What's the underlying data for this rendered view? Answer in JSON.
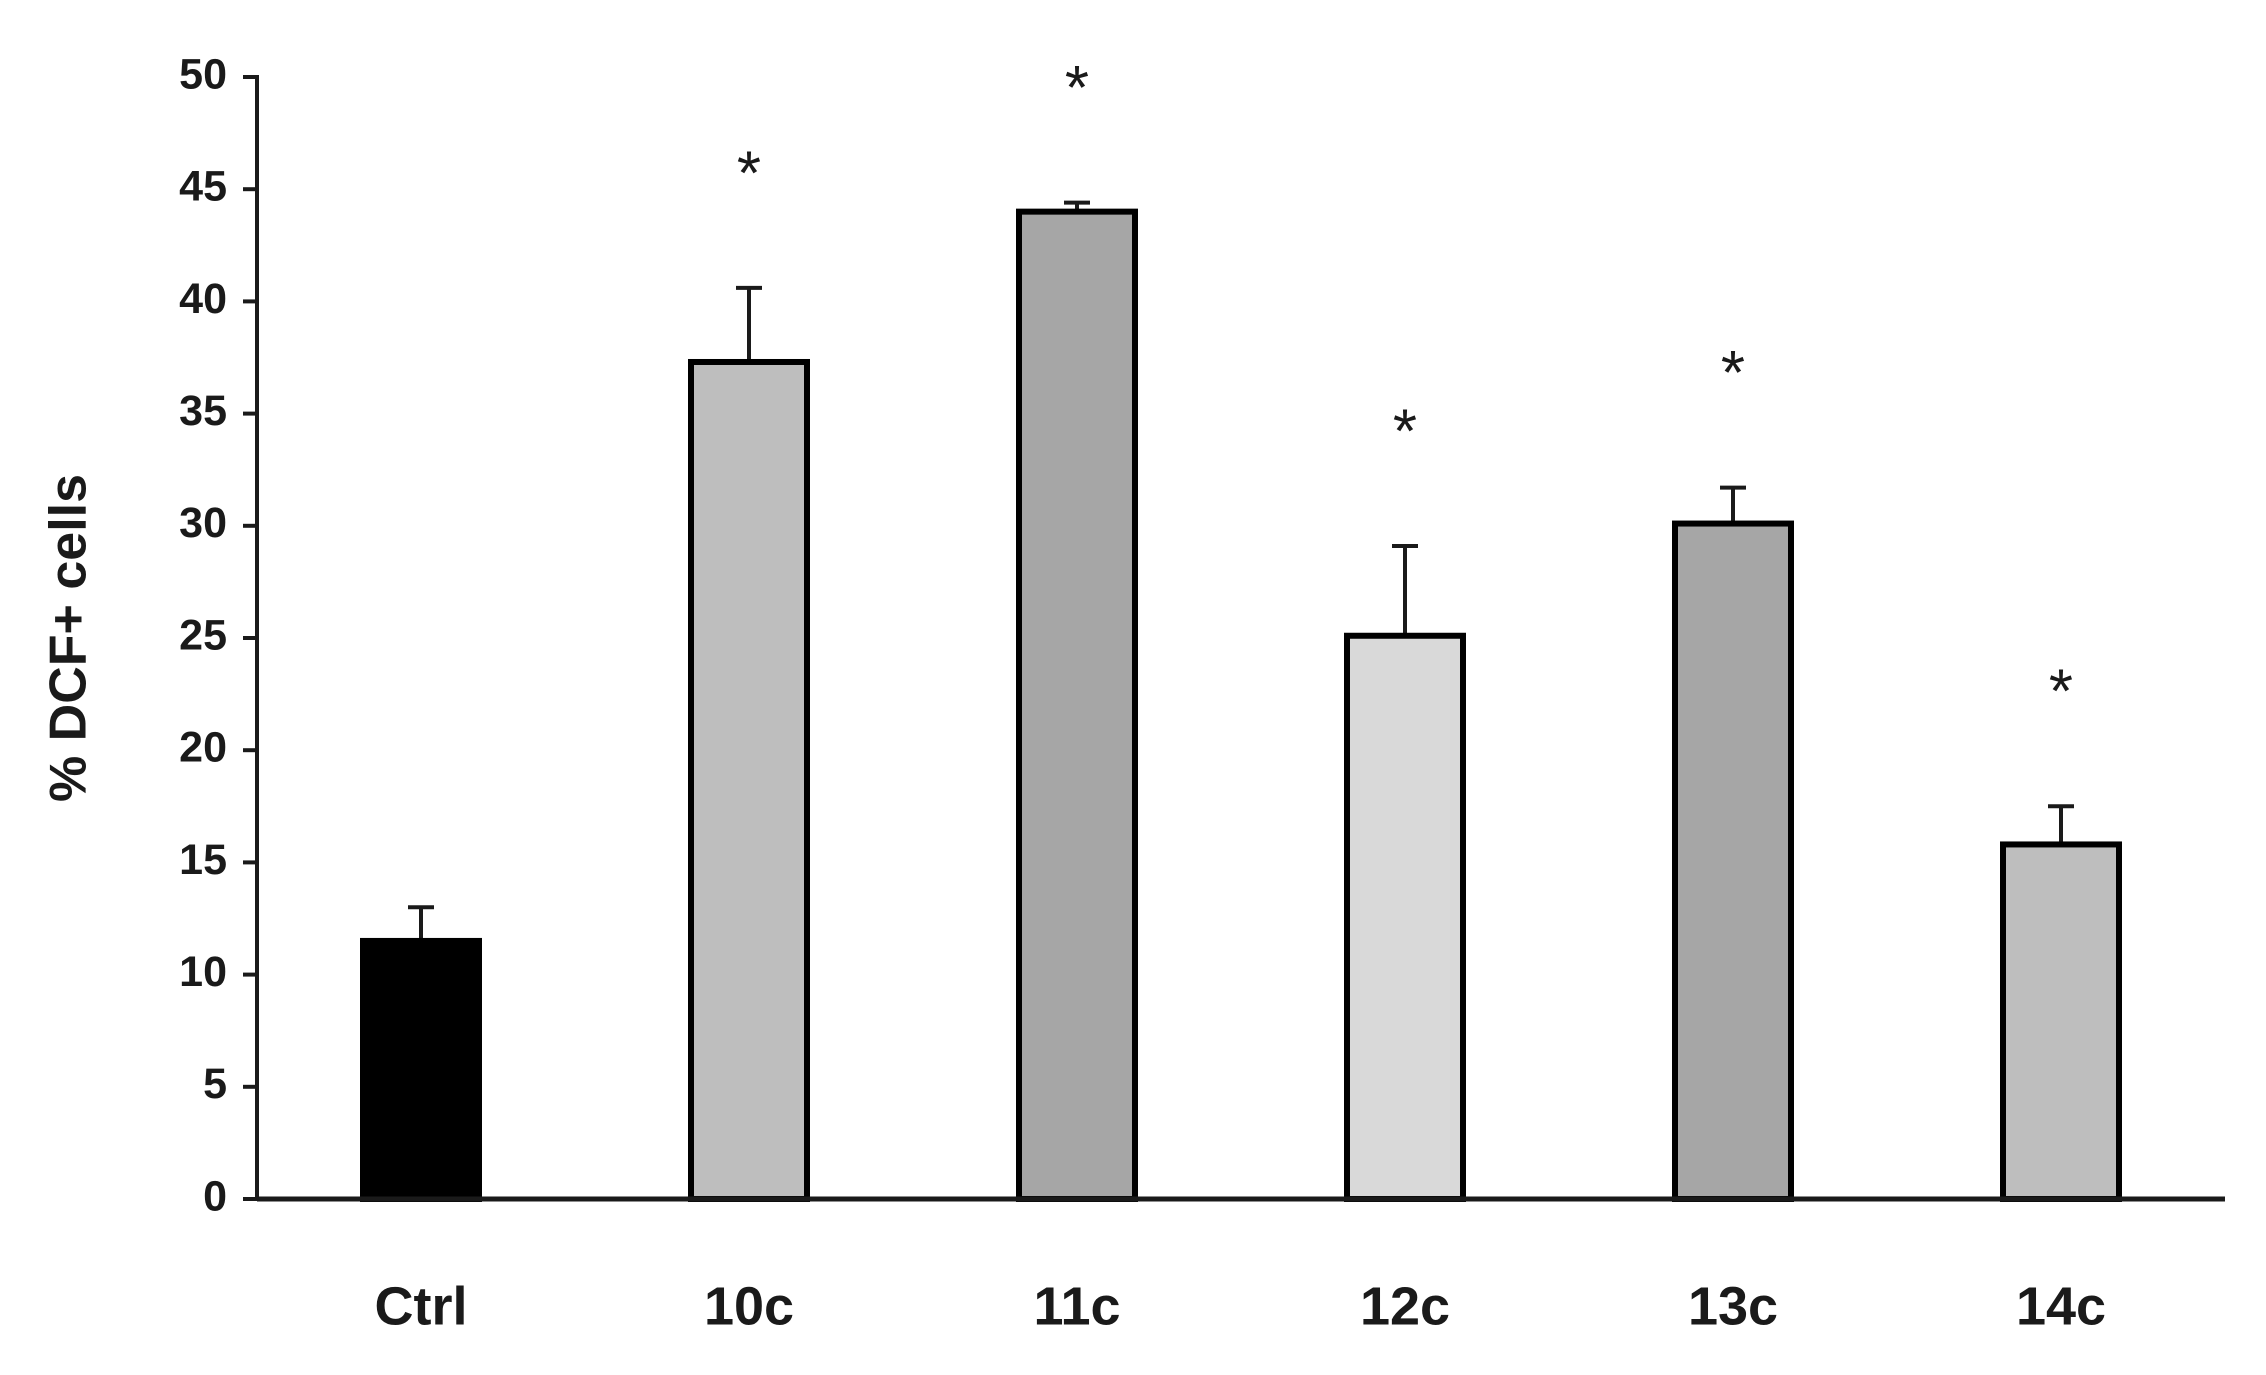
{
  "chart_data": {
    "type": "bar",
    "y_label": "% DCF+ cells",
    "categories": [
      "Ctrl",
      "10c",
      "11c",
      "12c",
      "13c",
      "14c"
    ],
    "values": [
      11.5,
      37.3,
      44,
      25.1,
      30.1,
      15.8
    ],
    "errors": [
      1.5,
      3.3,
      0.4,
      4,
      1.6,
      1.7
    ],
    "colors": [
      "#000000",
      "#bebebe",
      "#a6a6a6",
      "#d9d9d9",
      "#a6a6a6",
      "#bebebe"
    ],
    "significance": [
      null,
      "*",
      "*",
      "*",
      "*",
      "*"
    ],
    "ylim": [
      0,
      50
    ],
    "yticks": [
      0,
      5,
      10,
      15,
      20,
      25,
      30,
      35,
      40,
      45,
      50
    ],
    "grid": false
  }
}
